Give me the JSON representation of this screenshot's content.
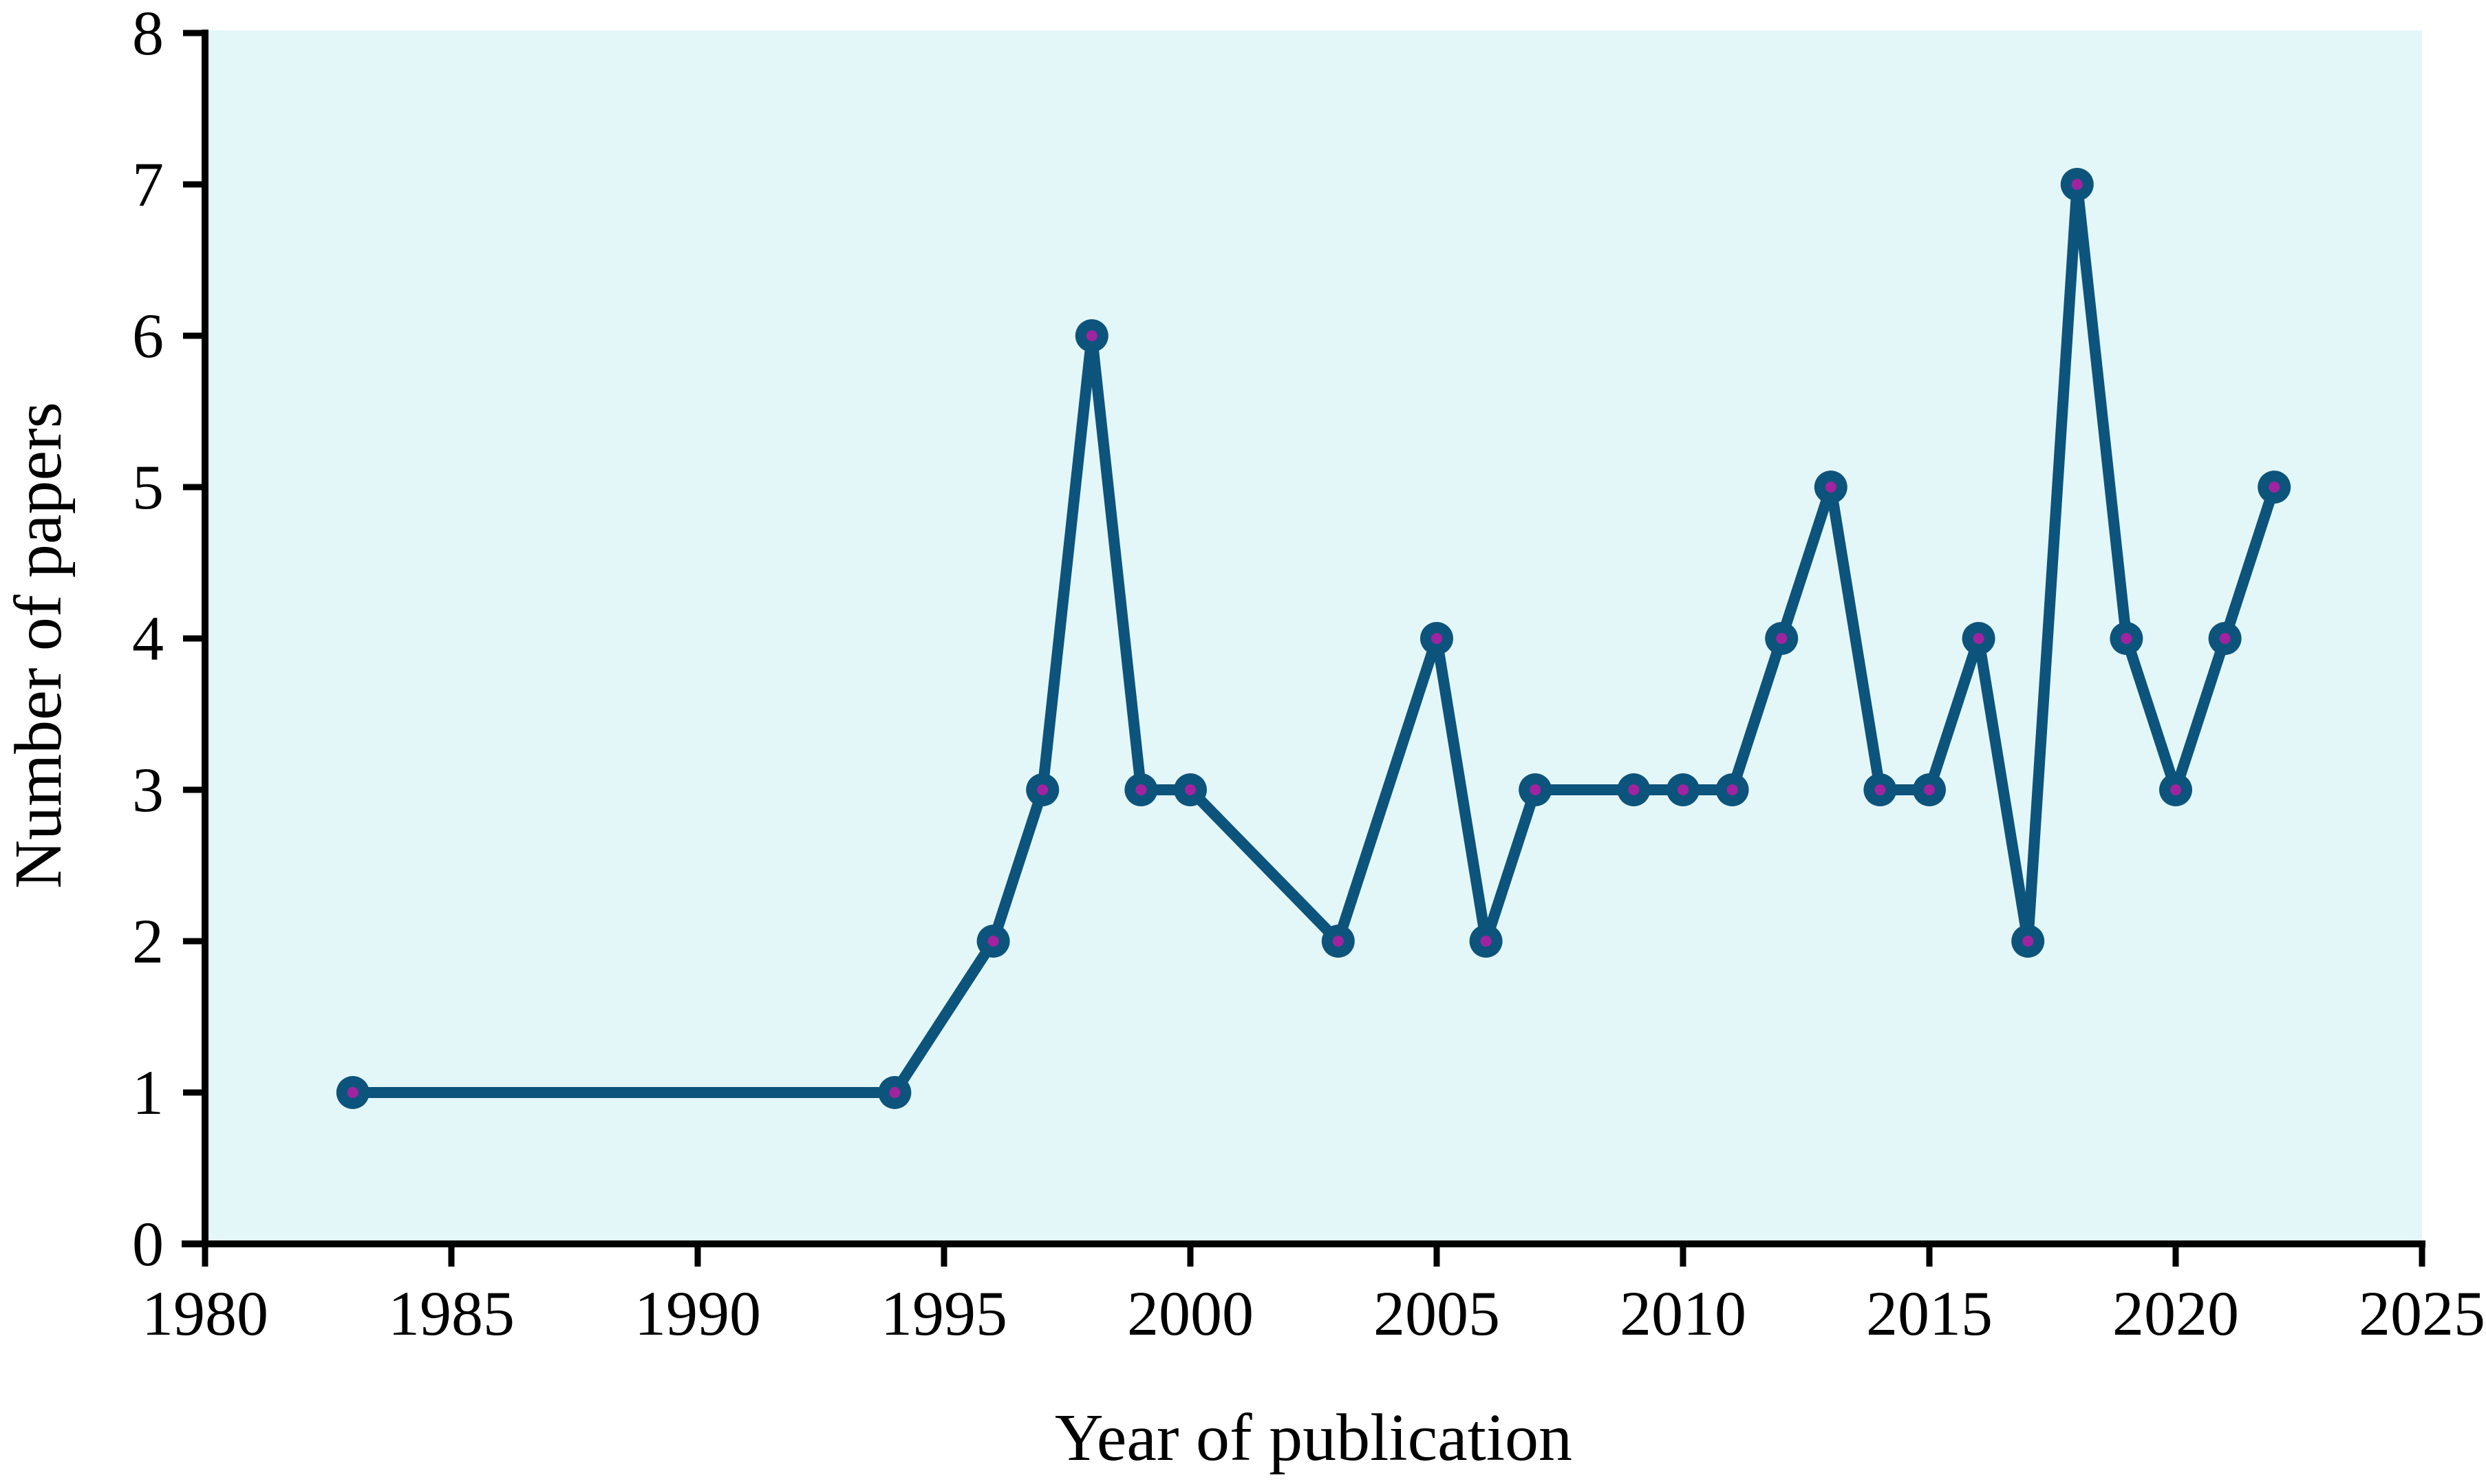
{
  "chart_data": {
    "type": "line",
    "title": "",
    "xlabel": "Year of publication",
    "ylabel": "Number of papers",
    "xlim": [
      1980,
      2025
    ],
    "ylim": [
      0,
      8
    ],
    "x_ticks": [
      "1980",
      "1985",
      "1990",
      "1995",
      "2000",
      "2005",
      "2010",
      "2015",
      "2020",
      "2025"
    ],
    "y_ticks": [
      "0",
      "1",
      "2",
      "3",
      "4",
      "5",
      "6",
      "7",
      "8"
    ],
    "grid": false,
    "legend": false,
    "series": [
      {
        "name": "Number of papers",
        "points": [
          [
            1983,
            1
          ],
          [
            1994,
            1
          ],
          [
            1996,
            2
          ],
          [
            1997,
            3
          ],
          [
            1998,
            6
          ],
          [
            1999,
            3
          ],
          [
            2000,
            3
          ],
          [
            2003,
            2
          ],
          [
            2005,
            4
          ],
          [
            2006,
            2
          ],
          [
            2007,
            3
          ],
          [
            2009,
            3
          ],
          [
            2010,
            3
          ],
          [
            2011,
            3
          ],
          [
            2012,
            4
          ],
          [
            2013,
            5
          ],
          [
            2014,
            3
          ],
          [
            2015,
            3
          ],
          [
            2016,
            4
          ],
          [
            2017,
            2
          ],
          [
            2018,
            7
          ],
          [
            2019,
            4
          ],
          [
            2020,
            3
          ],
          [
            2021,
            4
          ],
          [
            2022,
            5
          ]
        ]
      }
    ],
    "colors": {
      "line": "#0D547C",
      "marker_fill": "#0D547C",
      "marker_center_dot": "#A123A0",
      "plot_background": "#E4F7F8",
      "axis": "#000000",
      "page_background": "#FFFFFF"
    }
  }
}
